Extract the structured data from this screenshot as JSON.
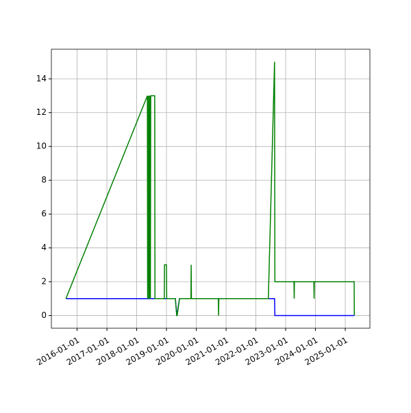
{
  "chart_data": {
    "type": "line",
    "xlim": [
      "2015-02-20",
      "2025-10-30"
    ],
    "xticks": [
      "2016-01-01",
      "2017-01-01",
      "2018-01-01",
      "2019-01-01",
      "2020-01-01",
      "2021-01-01",
      "2022-01-01",
      "2023-01-01",
      "2024-01-01",
      "2025-01-01"
    ],
    "ylim": [
      -0.75,
      15.75
    ],
    "yticks": [
      0,
      2,
      4,
      6,
      8,
      10,
      12,
      14
    ],
    "grid": true,
    "series": [
      {
        "color": "#0000ff",
        "x": [
          "2015-08-17",
          "2019-04-20",
          "2019-05-07",
          "2019-06-10",
          "2022-08-18",
          "2022-08-22",
          "2025-04-22"
        ],
        "values": [
          1,
          1,
          0,
          1,
          1,
          0,
          0
        ]
      },
      {
        "color": "#008000",
        "x": [
          "2015-08-17",
          "2018-05-12",
          "2018-05-15",
          "2018-05-22",
          "2018-05-29",
          "2018-06-05",
          "2018-06-10",
          "2018-06-15",
          "2018-06-18",
          "2018-06-22",
          "2018-08-10",
          "2018-08-13",
          "2018-12-05",
          "2018-12-08",
          "2019-01-01",
          "2019-01-04",
          "2019-04-20",
          "2019-05-07",
          "2019-05-12",
          "2019-06-10",
          "2019-10-28",
          "2019-10-31",
          "2019-11-03",
          "2020-09-28",
          "2020-10-01",
          "2020-10-04",
          "2022-06-03",
          "2022-08-18",
          "2022-08-22",
          "2023-04-13",
          "2023-04-16",
          "2023-04-19",
          "2023-12-13",
          "2023-12-16",
          "2023-12-19",
          "2025-04-20",
          "2025-04-22"
        ],
        "values": [
          1,
          13,
          1,
          13,
          1,
          13,
          1,
          13,
          1,
          13,
          13,
          1,
          1,
          3,
          3,
          1,
          1,
          0,
          0,
          1,
          1,
          3,
          1,
          1,
          0,
          1,
          1,
          15,
          2,
          2,
          1,
          2,
          2,
          1,
          2,
          2,
          0
        ]
      }
    ]
  }
}
